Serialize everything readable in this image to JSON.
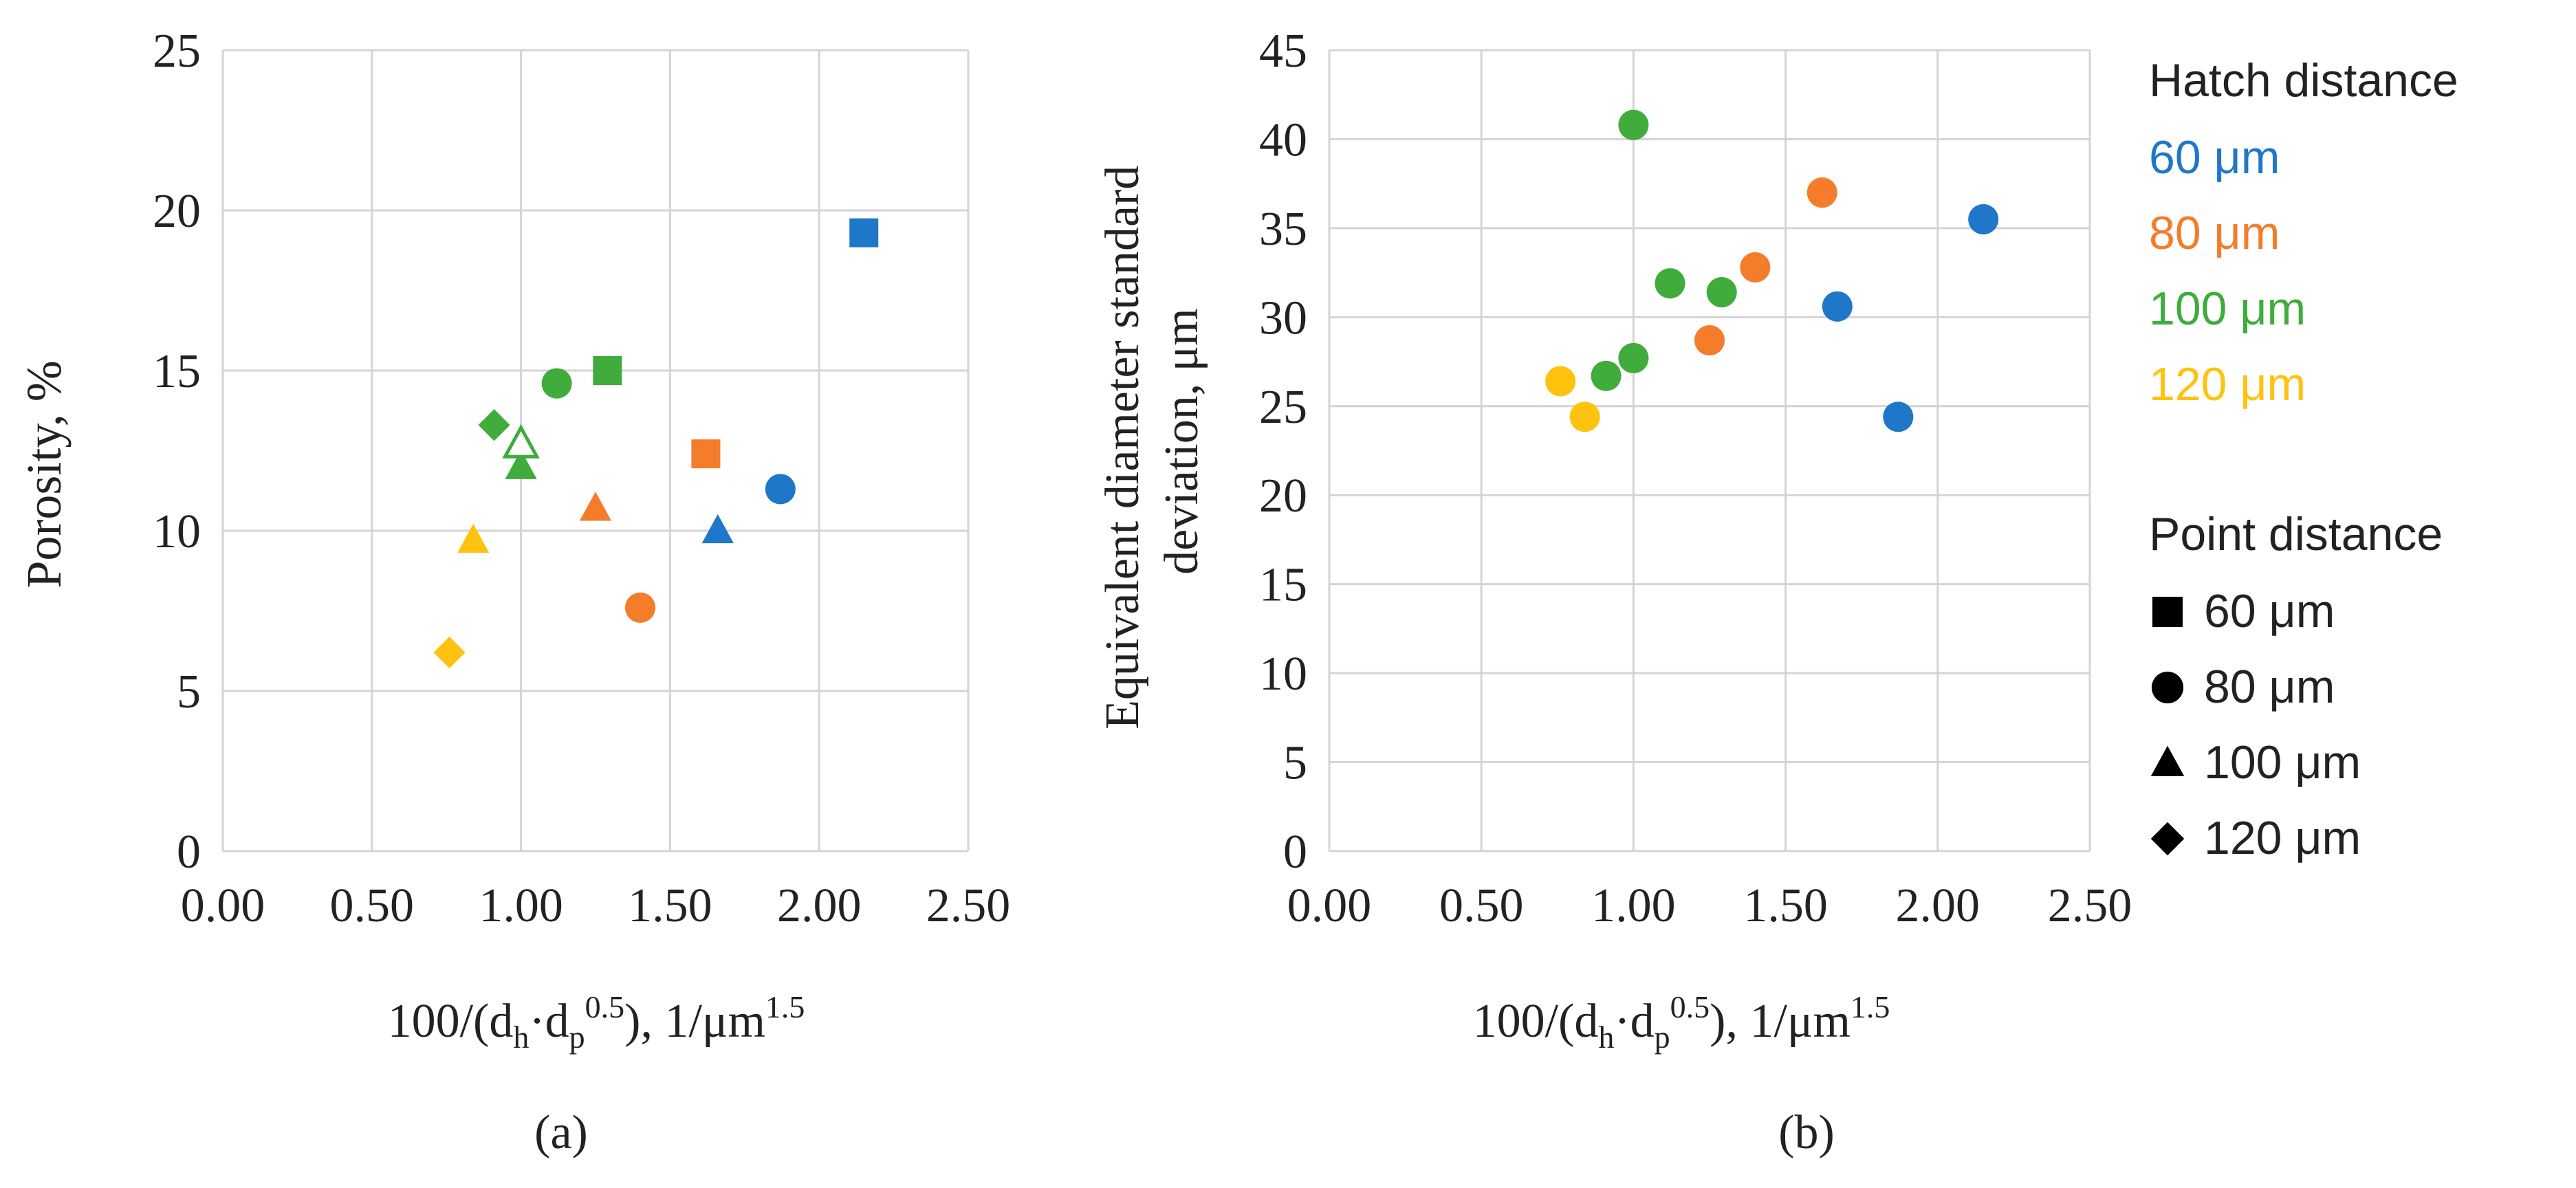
{
  "colors": {
    "h60": "#1f77c9",
    "h80": "#f47c2a",
    "h100": "#3fac3b",
    "h120": "#ffc20e",
    "text": "#222222",
    "grid": "#d4d4d4"
  },
  "legend": {
    "hatch_title": "Hatch distance",
    "hatch_items": [
      {
        "label": "60 μm",
        "color_key": "h60"
      },
      {
        "label": "80 μm",
        "color_key": "h80"
      },
      {
        "label": "100 μm",
        "color_key": "h100"
      },
      {
        "label": "120 μm",
        "color_key": "h120"
      }
    ],
    "point_title": "Point distance",
    "point_items": [
      {
        "label": "60 μm",
        "shape": "square"
      },
      {
        "label": "80 μm",
        "shape": "circle"
      },
      {
        "label": "100 μm",
        "shape": "triangle"
      },
      {
        "label": "120 μm",
        "shape": "diamond"
      }
    ]
  },
  "chart_data": [
    {
      "type": "scatter",
      "panel_label": "(a)",
      "ylabel": "Porosity, %",
      "xlabel": {
        "p1": "100/(d",
        "s1": "h",
        "p2": "·d",
        "s2": "p",
        "sup1": "0.5",
        "p3": "), 1/μm",
        "sup2": "1.5"
      },
      "xlim": [
        0,
        2.5
      ],
      "ylim": [
        0,
        25
      ],
      "xticks": [
        "0.00",
        "0.50",
        "1.00",
        "1.50",
        "2.00",
        "2.50"
      ],
      "yticks": [
        "0",
        "5",
        "10",
        "15",
        "20",
        "25"
      ],
      "grid": true,
      "points": [
        {
          "x": 2.15,
          "y": 19.3,
          "hatch": "h60",
          "shape": "square"
        },
        {
          "x": 1.87,
          "y": 11.3,
          "hatch": "h60",
          "shape": "circle"
        },
        {
          "x": 1.66,
          "y": 10.0,
          "hatch": "h60",
          "shape": "triangle"
        },
        {
          "x": 1.62,
          "y": 12.4,
          "hatch": "h80",
          "shape": "square"
        },
        {
          "x": 1.4,
          "y": 7.6,
          "hatch": "h80",
          "shape": "circle"
        },
        {
          "x": 1.25,
          "y": 10.7,
          "hatch": "h80",
          "shape": "triangle"
        },
        {
          "x": 1.29,
          "y": 15.0,
          "hatch": "h100",
          "shape": "square"
        },
        {
          "x": 1.12,
          "y": 14.6,
          "hatch": "h100",
          "shape": "circle"
        },
        {
          "x": 1.0,
          "y": 12.0,
          "hatch": "h100",
          "shape": "triangle"
        },
        {
          "x": 1.0,
          "y": 12.7,
          "hatch": "h100",
          "shape": "triangle-open"
        },
        {
          "x": 0.91,
          "y": 13.3,
          "hatch": "h100",
          "shape": "diamond"
        },
        {
          "x": 0.84,
          "y": 9.7,
          "hatch": "h120",
          "shape": "triangle"
        },
        {
          "x": 0.76,
          "y": 6.2,
          "hatch": "h120",
          "shape": "diamond"
        }
      ]
    },
    {
      "type": "scatter",
      "panel_label": "(b)",
      "ylabel": [
        "Equivalent diameter standard",
        "deviation, μm"
      ],
      "xlabel": {
        "p1": "100/(d",
        "s1": "h",
        "p2": "·d",
        "s2": "p",
        "sup1": "0.5",
        "p3": "), 1/μm",
        "sup2": "1.5"
      },
      "xlim": [
        0,
        2.5
      ],
      "ylim": [
        0,
        45
      ],
      "xticks": [
        "0.00",
        "0.50",
        "1.00",
        "1.50",
        "2.00",
        "2.50"
      ],
      "yticks": [
        "0",
        "5",
        "10",
        "15",
        "20",
        "25",
        "30",
        "35",
        "40",
        "45"
      ],
      "grid": true,
      "points": [
        {
          "x": 2.15,
          "y": 35.5,
          "hatch": "h60",
          "shape": "circle"
        },
        {
          "x": 1.67,
          "y": 30.6,
          "hatch": "h60",
          "shape": "circle"
        },
        {
          "x": 1.87,
          "y": 24.4,
          "hatch": "h60",
          "shape": "circle"
        },
        {
          "x": 1.62,
          "y": 37.0,
          "hatch": "h80",
          "shape": "circle"
        },
        {
          "x": 1.4,
          "y": 32.8,
          "hatch": "h80",
          "shape": "circle"
        },
        {
          "x": 1.25,
          "y": 28.7,
          "hatch": "h80",
          "shape": "circle"
        },
        {
          "x": 1.0,
          "y": 40.8,
          "hatch": "h100",
          "shape": "circle"
        },
        {
          "x": 1.12,
          "y": 31.9,
          "hatch": "h100",
          "shape": "circle"
        },
        {
          "x": 1.29,
          "y": 31.4,
          "hatch": "h100",
          "shape": "circle"
        },
        {
          "x": 1.0,
          "y": 27.7,
          "hatch": "h100",
          "shape": "circle"
        },
        {
          "x": 0.91,
          "y": 26.7,
          "hatch": "h100",
          "shape": "circle"
        },
        {
          "x": 0.76,
          "y": 26.4,
          "hatch": "h120",
          "shape": "circle"
        },
        {
          "x": 0.84,
          "y": 24.4,
          "hatch": "h120",
          "shape": "circle"
        }
      ]
    }
  ]
}
